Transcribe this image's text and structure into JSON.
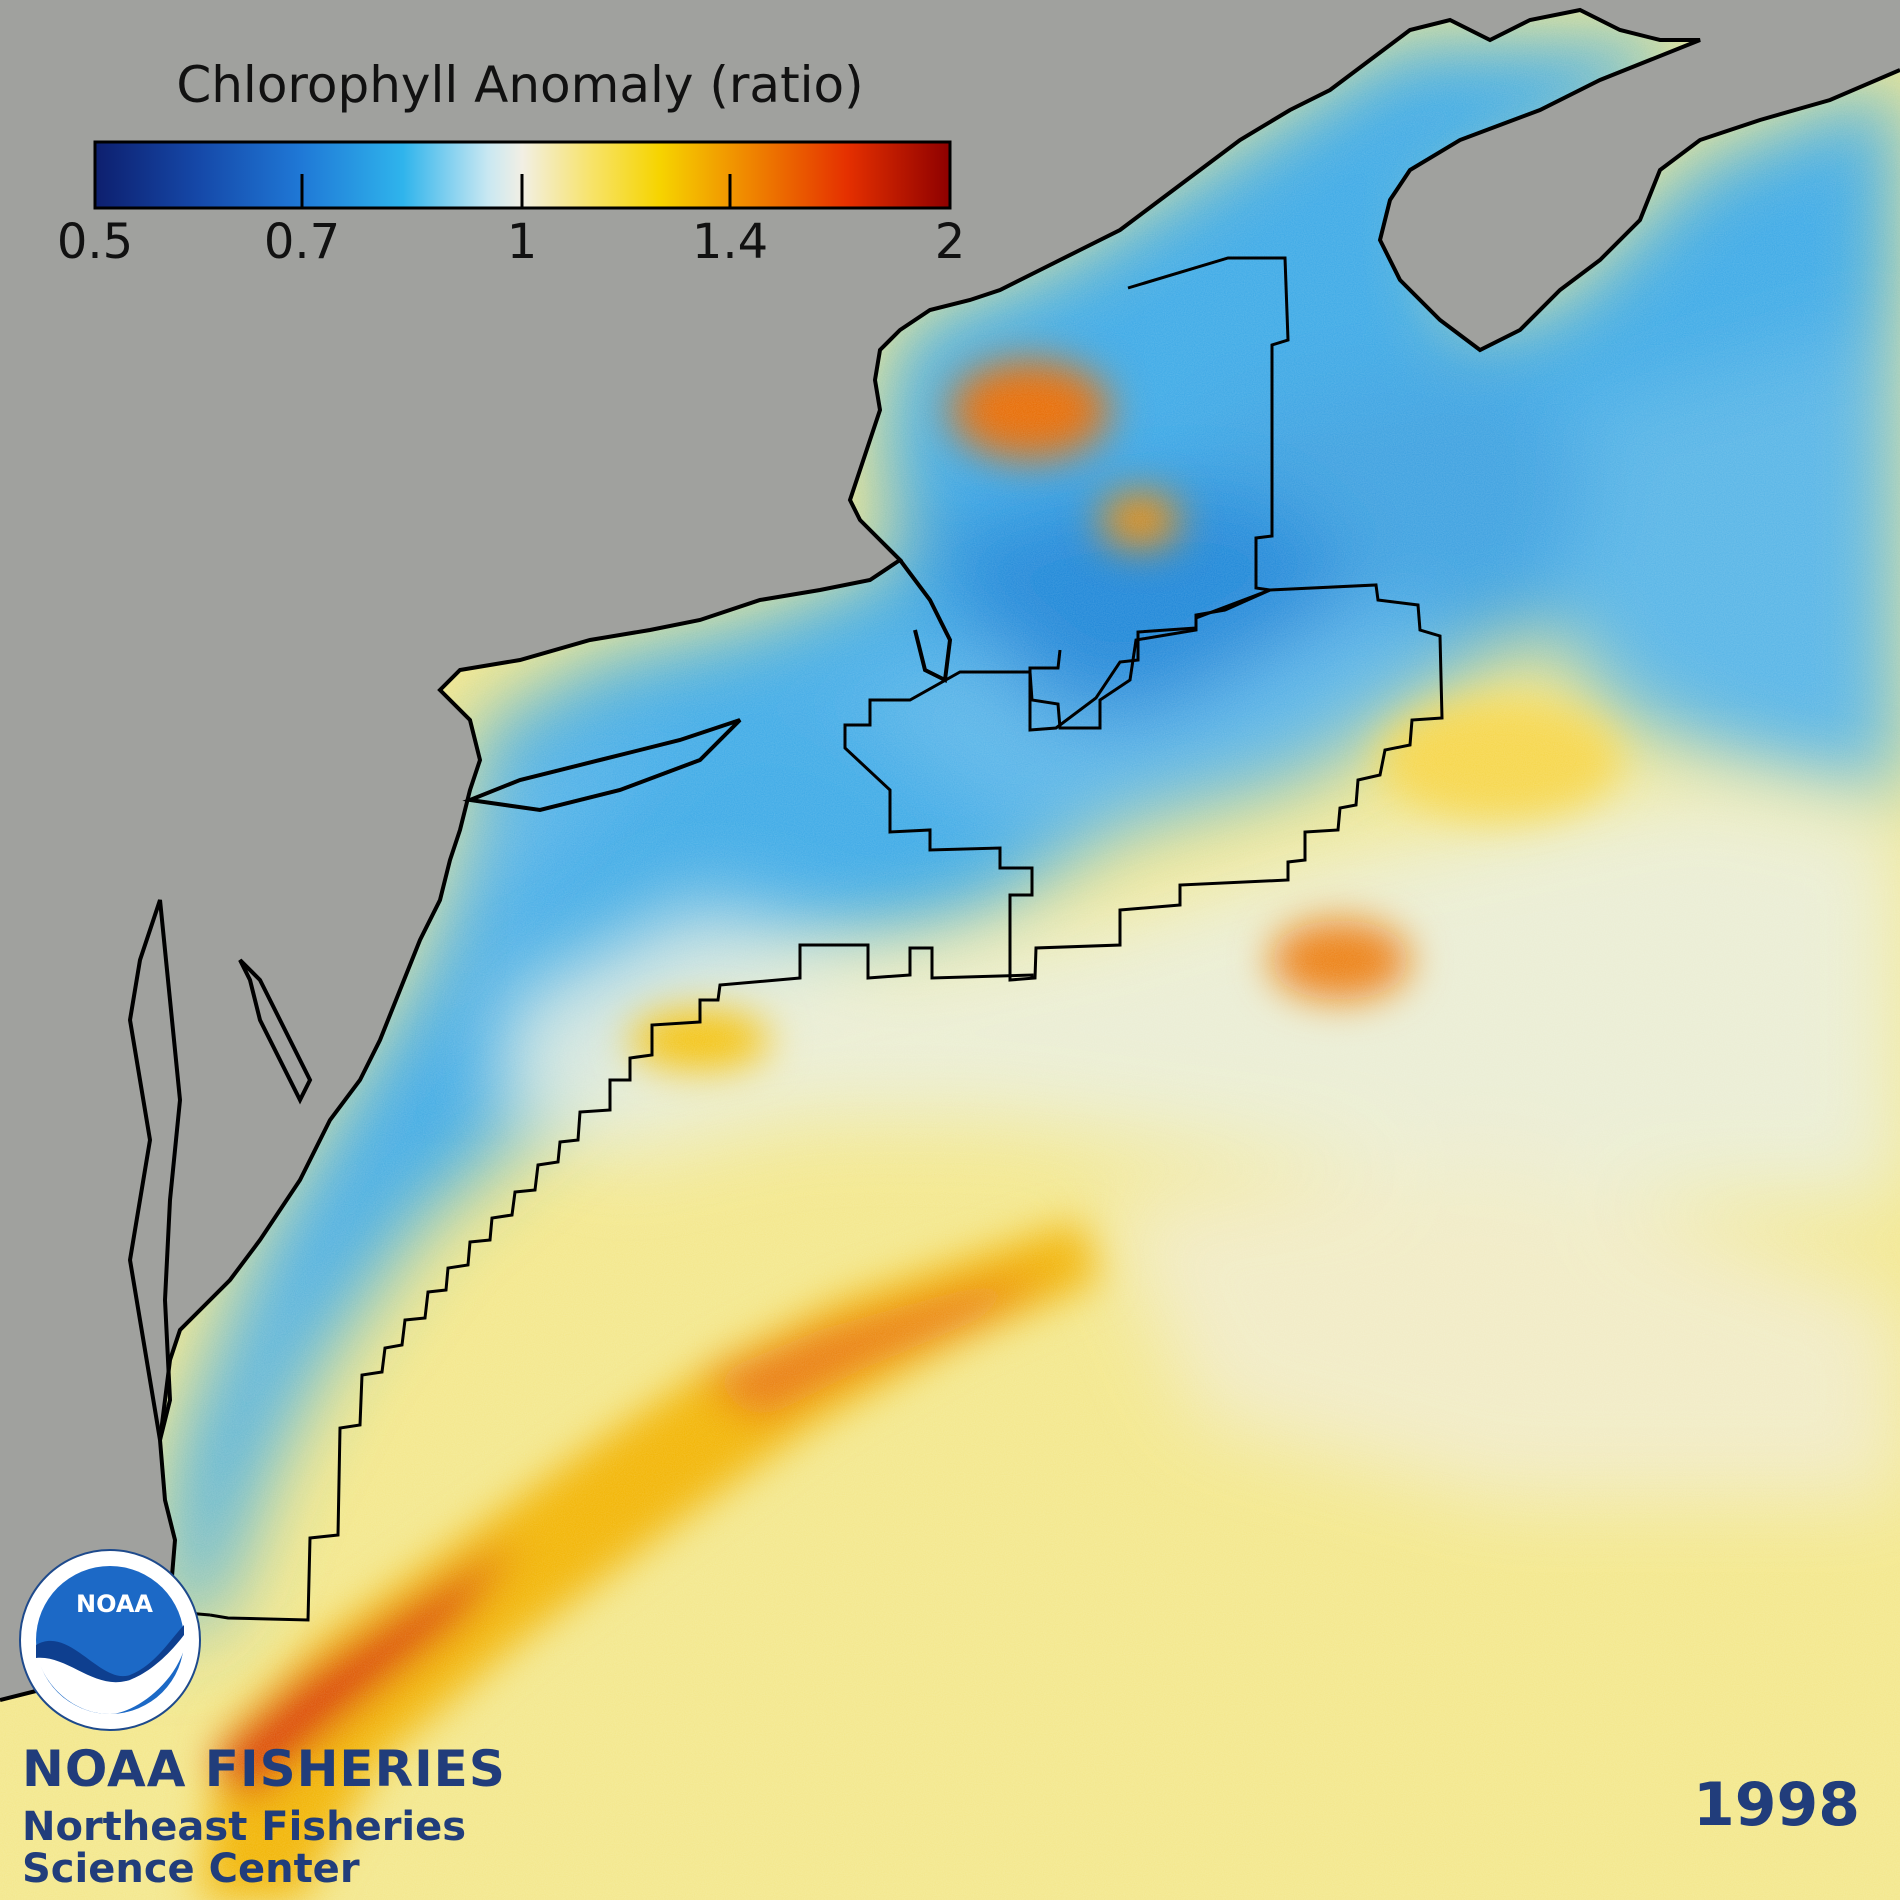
{
  "colorbar": {
    "title": "Chlorophyll Anomaly (ratio)",
    "ticks": [
      "0.5",
      "0.7",
      "1",
      "1.4",
      "2"
    ],
    "stops": [
      "#0d1f6e",
      "#1548a8",
      "#1f78d6",
      "#2fb4ec",
      "#c9e8f2",
      "#f2efe4",
      "#f7e36a",
      "#f6c800",
      "#f08a00",
      "#e53000",
      "#9c0000"
    ]
  },
  "branding": {
    "agency": "NOAA FISHERIES",
    "center_line1": "Northeast Fisheries",
    "center_line2": "Science Center",
    "logo_text": "NOAA"
  },
  "year": "1998",
  "colors": {
    "land": "#a0a19e",
    "brand": "#213d7b",
    "coast": "#000000"
  }
}
